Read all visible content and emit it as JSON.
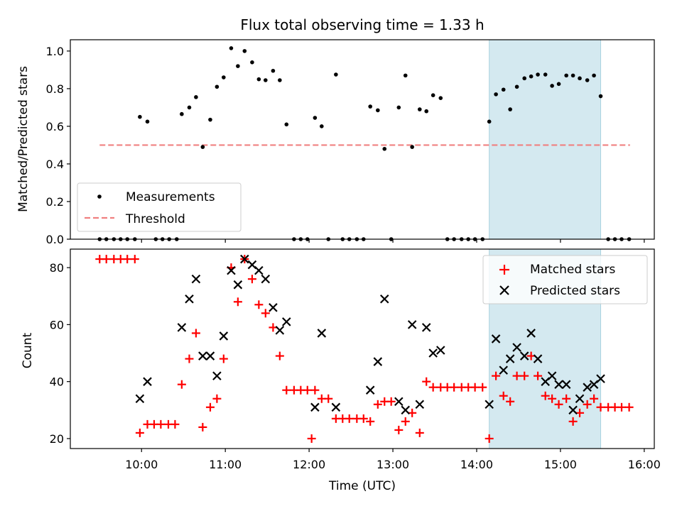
{
  "chart_data": [
    {
      "type": "scatter",
      "title": "Flux total observing time = 1.33 h",
      "xlabel": "",
      "ylabel": "Matched/Predicted stars",
      "ylim": [
        0,
        1.06
      ],
      "yticks": [
        0.0,
        0.2,
        0.4,
        0.6,
        0.8,
        1.0
      ],
      "ytick_labels": [
        "0.0",
        "0.2",
        "0.4",
        "0.6",
        "0.8",
        "1.0"
      ],
      "x_unit": "hours (UTC)",
      "xlim": [
        9.15,
        16.12
      ],
      "shaded_interval": [
        14.15,
        15.48
      ],
      "shade_color": "#d4e9f0",
      "legend_position": "lower-left",
      "legend": [
        "Measurements",
        "Threshold"
      ],
      "threshold": {
        "name": "Threshold",
        "value": 0.5,
        "x_range": [
          9.5,
          15.83
        ],
        "color": "#f08080"
      },
      "series": [
        {
          "name": "Measurements",
          "color": "#000000",
          "points": [
            [
              9.5,
              0
            ],
            [
              9.58,
              0
            ],
            [
              9.67,
              0
            ],
            [
              9.75,
              0
            ],
            [
              9.83,
              0
            ],
            [
              9.92,
              0
            ],
            [
              9.98,
              0.65
            ],
            [
              10.07,
              0.625
            ],
            [
              10.17,
              0
            ],
            [
              10.25,
              0
            ],
            [
              10.33,
              0
            ],
            [
              10.42,
              0
            ],
            [
              10.48,
              0.665
            ],
            [
              10.57,
              0.7
            ],
            [
              10.65,
              0.755
            ],
            [
              10.73,
              0.49
            ],
            [
              10.82,
              0.635
            ],
            [
              10.9,
              0.81
            ],
            [
              10.98,
              0.86
            ],
            [
              11.07,
              1.015
            ],
            [
              11.15,
              0.92
            ],
            [
              11.23,
              1.0
            ],
            [
              11.32,
              0.94
            ],
            [
              11.4,
              0.85
            ],
            [
              11.48,
              0.845
            ],
            [
              11.57,
              0.895
            ],
            [
              11.65,
              0.845
            ],
            [
              11.73,
              0.61
            ],
            [
              11.82,
              0
            ],
            [
              11.9,
              0
            ],
            [
              11.98,
              0
            ],
            [
              12.07,
              0.645
            ],
            [
              12.15,
              0.6
            ],
            [
              12.23,
              0
            ],
            [
              12.32,
              0.875
            ],
            [
              12.4,
              0
            ],
            [
              12.48,
              0
            ],
            [
              12.57,
              0
            ],
            [
              12.65,
              0
            ],
            [
              12.73,
              0.705
            ],
            [
              12.82,
              0.685
            ],
            [
              12.9,
              0.48
            ],
            [
              12.98,
              0
            ],
            [
              13.07,
              0.7
            ],
            [
              13.15,
              0.87
            ],
            [
              13.23,
              0.49
            ],
            [
              13.32,
              0.69
            ],
            [
              13.4,
              0.68
            ],
            [
              13.48,
              0.765
            ],
            [
              13.57,
              0.75
            ],
            [
              13.65,
              0
            ],
            [
              13.73,
              0
            ],
            [
              13.82,
              0
            ],
            [
              13.9,
              0
            ],
            [
              13.98,
              0
            ],
            [
              14.07,
              0
            ],
            [
              14.15,
              0.625
            ],
            [
              14.23,
              0.77
            ],
            [
              14.32,
              0.795
            ],
            [
              14.4,
              0.69
            ],
            [
              14.48,
              0.81
            ],
            [
              14.57,
              0.855
            ],
            [
              14.65,
              0.865
            ],
            [
              14.73,
              0.875
            ],
            [
              14.82,
              0.875
            ],
            [
              14.9,
              0.815
            ],
            [
              14.98,
              0.825
            ],
            [
              15.07,
              0.87
            ],
            [
              15.15,
              0.87
            ],
            [
              15.23,
              0.855
            ],
            [
              15.32,
              0.845
            ],
            [
              15.4,
              0.87
            ],
            [
              15.48,
              0.76
            ],
            [
              15.57,
              0
            ],
            [
              15.65,
              0
            ],
            [
              15.73,
              0
            ],
            [
              15.82,
              0
            ]
          ]
        }
      ]
    },
    {
      "type": "scatter",
      "title": "",
      "xlabel": "Time (UTC)",
      "ylabel": "Count",
      "ylim": [
        16.5,
        86.5
      ],
      "yticks": [
        20,
        40,
        60,
        80
      ],
      "ytick_labels": [
        "20",
        "40",
        "60",
        "80"
      ],
      "x_unit": "hours (UTC)",
      "xlim": [
        9.15,
        16.12
      ],
      "xticks": [
        10,
        11,
        12,
        13,
        14,
        15,
        16
      ],
      "xtick_labels": [
        "10:00",
        "11:00",
        "12:00",
        "13:00",
        "14:00",
        "15:00",
        "16:00"
      ],
      "shaded_interval": [
        14.15,
        15.48
      ],
      "shade_color": "#d4e9f0",
      "legend_position": "upper-right",
      "legend": [
        "Matched stars",
        "Predicted stars"
      ],
      "series": [
        {
          "name": "Matched stars",
          "marker": "plus",
          "color": "#ff0000",
          "points": [
            [
              9.5,
              83
            ],
            [
              9.58,
              83
            ],
            [
              9.67,
              83
            ],
            [
              9.75,
              83
            ],
            [
              9.83,
              83
            ],
            [
              9.92,
              83
            ],
            [
              9.98,
              22
            ],
            [
              10.07,
              25
            ],
            [
              10.15,
              25
            ],
            [
              10.23,
              25
            ],
            [
              10.32,
              25
            ],
            [
              10.4,
              25
            ],
            [
              10.48,
              39
            ],
            [
              10.57,
              48
            ],
            [
              10.65,
              57
            ],
            [
              10.73,
              24
            ],
            [
              10.82,
              31
            ],
            [
              10.9,
              34
            ],
            [
              10.98,
              48
            ],
            [
              11.07,
              80
            ],
            [
              11.15,
              68
            ],
            [
              11.23,
              83
            ],
            [
              11.32,
              76
            ],
            [
              11.4,
              67
            ],
            [
              11.48,
              64
            ],
            [
              11.57,
              59
            ],
            [
              11.65,
              49
            ],
            [
              11.73,
              37
            ],
            [
              11.82,
              37
            ],
            [
              11.9,
              37
            ],
            [
              11.98,
              37
            ],
            [
              12.07,
              37
            ],
            [
              12.03,
              20
            ],
            [
              12.15,
              34
            ],
            [
              12.23,
              34
            ],
            [
              12.32,
              27
            ],
            [
              12.4,
              27
            ],
            [
              12.48,
              27
            ],
            [
              12.57,
              27
            ],
            [
              12.65,
              27
            ],
            [
              12.73,
              26
            ],
            [
              12.82,
              32
            ],
            [
              12.9,
              33
            ],
            [
              12.98,
              33
            ],
            [
              13.07,
              23
            ],
            [
              13.15,
              26
            ],
            [
              13.23,
              29
            ],
            [
              13.32,
              22
            ],
            [
              13.4,
              40
            ],
            [
              13.48,
              38
            ],
            [
              13.57,
              38
            ],
            [
              13.65,
              38
            ],
            [
              13.73,
              38
            ],
            [
              13.82,
              38
            ],
            [
              13.9,
              38
            ],
            [
              13.98,
              38
            ],
            [
              14.07,
              38
            ],
            [
              14.15,
              20
            ],
            [
              14.23,
              42
            ],
            [
              14.32,
              35
            ],
            [
              14.4,
              33
            ],
            [
              14.48,
              42
            ],
            [
              14.57,
              42
            ],
            [
              14.65,
              49
            ],
            [
              14.73,
              42
            ],
            [
              14.82,
              35
            ],
            [
              14.9,
              34
            ],
            [
              14.98,
              32
            ],
            [
              15.07,
              34
            ],
            [
              15.15,
              26
            ],
            [
              15.23,
              29
            ],
            [
              15.32,
              32
            ],
            [
              15.4,
              34
            ],
            [
              15.48,
              31
            ],
            [
              15.57,
              31
            ],
            [
              15.65,
              31
            ],
            [
              15.73,
              31
            ],
            [
              15.82,
              31
            ]
          ]
        },
        {
          "name": "Predicted stars",
          "marker": "x",
          "color": "#000000",
          "points": [
            [
              9.98,
              34
            ],
            [
              10.07,
              40
            ],
            [
              10.48,
              59
            ],
            [
              10.57,
              69
            ],
            [
              10.65,
              76
            ],
            [
              10.73,
              49
            ],
            [
              10.82,
              49
            ],
            [
              10.9,
              42
            ],
            [
              10.98,
              56
            ],
            [
              11.07,
              79
            ],
            [
              11.15,
              74
            ],
            [
              11.23,
              83
            ],
            [
              11.32,
              81
            ],
            [
              11.4,
              79
            ],
            [
              11.48,
              76
            ],
            [
              11.57,
              66
            ],
            [
              11.65,
              58
            ],
            [
              11.73,
              61
            ],
            [
              12.07,
              31
            ],
            [
              12.15,
              57
            ],
            [
              12.32,
              31
            ],
            [
              12.73,
              37
            ],
            [
              12.82,
              47
            ],
            [
              12.9,
              69
            ],
            [
              13.07,
              33
            ],
            [
              13.15,
              30
            ],
            [
              13.23,
              60
            ],
            [
              13.32,
              32
            ],
            [
              13.4,
              59
            ],
            [
              13.48,
              50
            ],
            [
              13.57,
              51
            ],
            [
              14.15,
              32
            ],
            [
              14.23,
              55
            ],
            [
              14.32,
              44
            ],
            [
              14.4,
              48
            ],
            [
              14.48,
              52
            ],
            [
              14.57,
              49
            ],
            [
              14.65,
              57
            ],
            [
              14.73,
              48
            ],
            [
              14.82,
              40
            ],
            [
              14.9,
              42
            ],
            [
              14.98,
              39
            ],
            [
              15.07,
              39
            ],
            [
              15.15,
              30
            ],
            [
              15.23,
              34
            ],
            [
              15.32,
              38
            ],
            [
              15.4,
              39
            ],
            [
              15.48,
              41
            ]
          ]
        }
      ]
    }
  ]
}
